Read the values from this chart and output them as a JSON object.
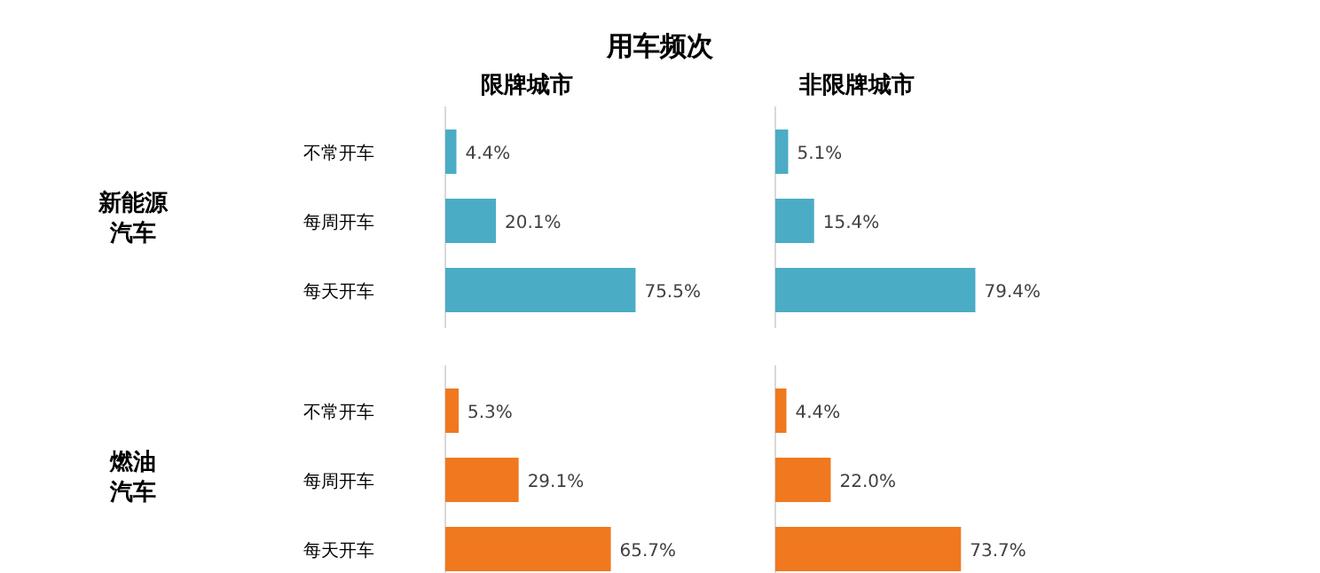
{
  "chart_data": [
    {
      "type": "other",
      "title": "用车频次"
    },
    {
      "type": "bar",
      "orientation": "horizontal",
      "title": "限牌城市",
      "ylabel": "新能源汽车",
      "categories": [
        "不常开车",
        "每周开车",
        "每天开车"
      ],
      "values": [
        4.4,
        20.1,
        75.5
      ],
      "value_labels": [
        "4.4%",
        "20.1%",
        "75.5%"
      ],
      "color": "#4bacc6",
      "tick_labels": "y"
    },
    {
      "type": "bar",
      "orientation": "horizontal",
      "title": "非限牌城市",
      "categories": [
        "不常开车",
        "每周开车",
        "每天开车"
      ],
      "values": [
        5.1,
        15.4,
        79.4
      ],
      "value_labels": [
        "5.1%",
        "15.4%",
        "79.4%"
      ],
      "color": "#4bacc6",
      "tick_labels": false
    },
    {
      "type": "bar",
      "orientation": "horizontal",
      "ylabel": "燃油汽车",
      "categories": [
        "不常开车",
        "每周开车",
        "每天开车"
      ],
      "values": [
        5.3,
        29.1,
        65.7
      ],
      "value_labels": [
        "5.3%",
        "29.1%",
        "65.7%"
      ],
      "color": "#f0781e",
      "tick_labels": "y"
    },
    {
      "type": "bar",
      "orientation": "horizontal",
      "categories": [
        "不常开车",
        "每周开车",
        "每天开车"
      ],
      "values": [
        4.4,
        22.0,
        73.7
      ],
      "value_labels": [
        "4.4%",
        "22.0%",
        "73.7%"
      ],
      "color": "#f0781e",
      "tick_labels": false
    }
  ]
}
